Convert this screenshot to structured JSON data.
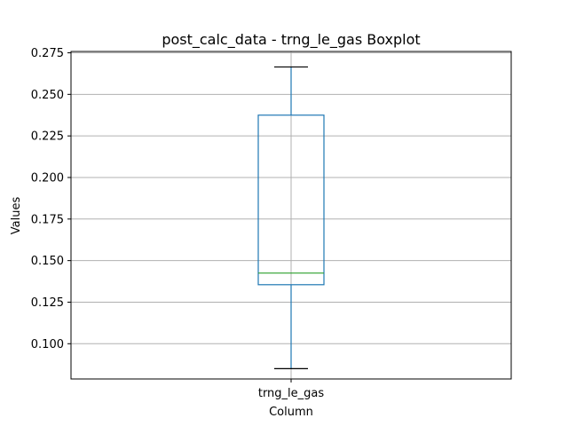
{
  "chart_data": {
    "type": "boxplot",
    "title": "post_calc_data - trng_le_gas Boxplot",
    "xlabel": "Column",
    "ylabel": "Values",
    "categories": [
      "trng_le_gas"
    ],
    "boxes": [
      {
        "category": "trng_le_gas",
        "whisker_low": 0.085,
        "q1": 0.1355,
        "median": 0.1425,
        "q3": 0.2375,
        "whisker_high": 0.2665
      }
    ],
    "ylim": [
      0.0788,
      0.2758
    ],
    "yticks": [
      0.1,
      0.125,
      0.15,
      0.175,
      0.2,
      0.225,
      0.25,
      0.275
    ],
    "ytick_labels": [
      "0.100",
      "0.125",
      "0.150",
      "0.175",
      "0.200",
      "0.225",
      "0.250",
      "0.275"
    ],
    "grid": true,
    "colors": {
      "box": "#1f77b4",
      "whisker": "#1f77b4",
      "cap": "#000000",
      "median": "#2ca02c",
      "grid": "#b0b0b0",
      "axes": "#000000"
    }
  }
}
